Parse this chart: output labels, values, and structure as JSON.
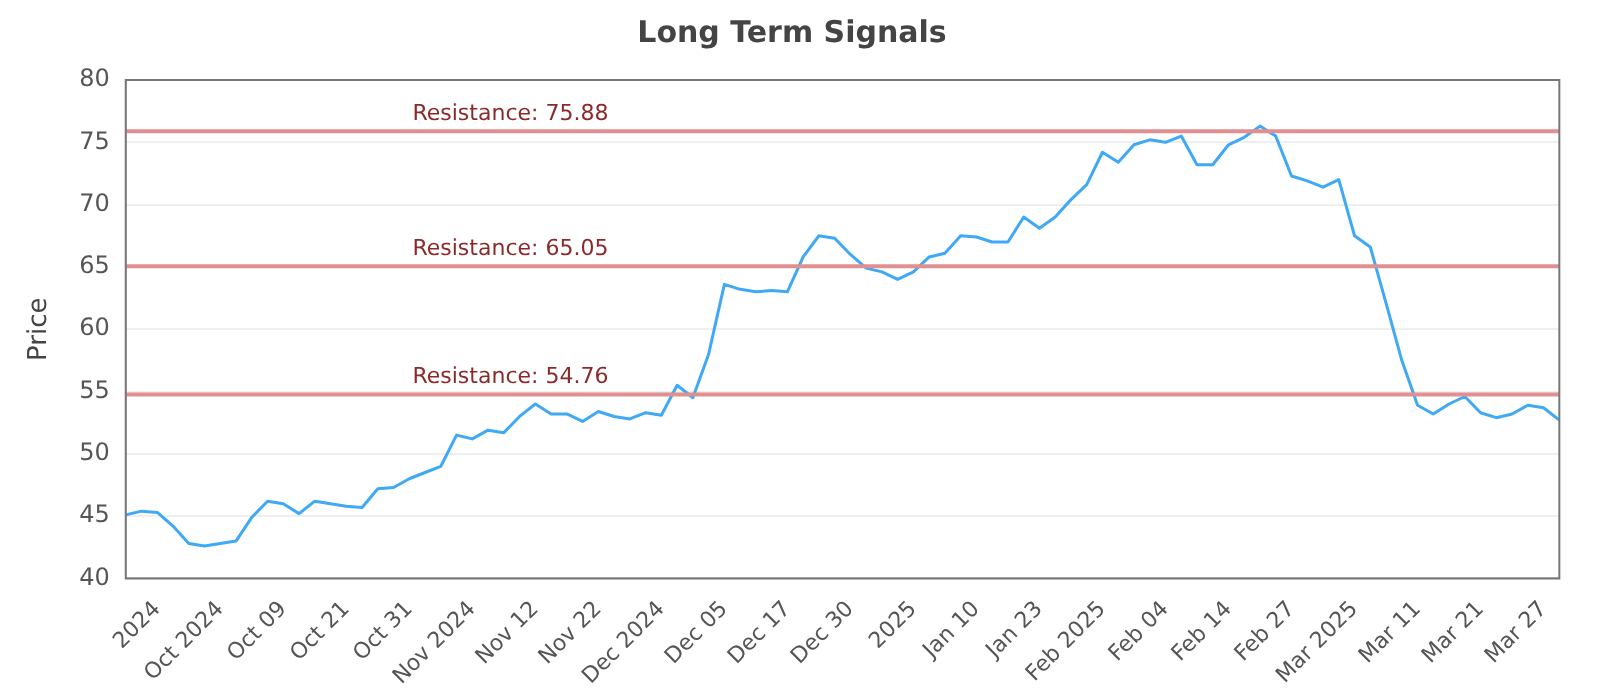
{
  "chart_data": {
    "type": "line",
    "title": "Long Term Signals",
    "ylabel": "Price",
    "categories": [
      null,
      null,
      "2024",
      null,
      null,
      null,
      "Oct 2024",
      null,
      null,
      null,
      "Oct 09",
      null,
      null,
      null,
      "Oct 21",
      null,
      null,
      null,
      "Oct 31",
      null,
      null,
      null,
      "Nov 2024",
      null,
      null,
      null,
      "Nov 12",
      null,
      null,
      null,
      "Nov 22",
      null,
      null,
      null,
      "Dec 2024",
      null,
      null,
      null,
      "Dec 05",
      null,
      null,
      null,
      "Dec 17",
      null,
      null,
      null,
      "Dec 30",
      null,
      null,
      null,
      "2025",
      null,
      null,
      null,
      "Jan 10",
      null,
      null,
      null,
      "Jan 23",
      null,
      null,
      null,
      "Feb 2025",
      null,
      null,
      null,
      "Feb 04",
      null,
      null,
      null,
      "Feb 14",
      null,
      null,
      null,
      "Feb 27",
      null,
      null,
      null,
      "Mar 2025",
      null,
      null,
      null,
      "Mar 11",
      null,
      null,
      null,
      "Mar 21",
      null,
      null,
      null,
      "Mar 27",
      null
    ],
    "series": [
      {
        "color": "#3fa9f5",
        "values": [
          45.1,
          45.4,
          45.3,
          44.2,
          42.8,
          42.6,
          42.8,
          43.0,
          44.9,
          46.2,
          46.0,
          45.2,
          46.2,
          46.0,
          45.8,
          45.7,
          47.2,
          47.3,
          48.0,
          48.5,
          49.0,
          51.5,
          51.2,
          51.9,
          51.7,
          53.0,
          54.0,
          53.2,
          53.2,
          52.6,
          53.4,
          53.0,
          52.8,
          53.3,
          53.1,
          55.5,
          54.5,
          58.0,
          63.6,
          63.2,
          63.0,
          63.1,
          63.0,
          65.8,
          67.5,
          67.3,
          66.0,
          64.9,
          64.6,
          64.0,
          64.6,
          65.8,
          66.1,
          67.5,
          67.4,
          67.0,
          67.0,
          69.0,
          68.1,
          69.0,
          70.4,
          71.6,
          74.2,
          73.4,
          74.8,
          75.2,
          75.0,
          75.5,
          73.2,
          73.2,
          74.8,
          75.4,
          76.3,
          75.5,
          72.3,
          71.9,
          71.4,
          72.0,
          67.5,
          66.6,
          62.1,
          57.5,
          53.9,
          53.2,
          54.0,
          54.6,
          53.3,
          52.9,
          53.2,
          53.9,
          53.7,
          52.7
        ]
      }
    ],
    "ylim": [
      40,
      80
    ],
    "yticks": [
      40,
      45,
      50,
      55,
      60,
      65,
      70,
      75,
      80
    ],
    "grid": "y",
    "legend": false,
    "marker": "none",
    "line_style": "solid",
    "ref_lines": [
      {
        "axis": "y",
        "value": 75.88,
        "label": "Resistance: 75.88",
        "color": "#e09090"
      },
      {
        "axis": "y",
        "value": 65.05,
        "label": "Resistance: 65.05",
        "color": "#e09090"
      },
      {
        "axis": "y",
        "value": 54.76,
        "label": "Resistance: 54.76",
        "color": "#e09090"
      }
    ]
  }
}
